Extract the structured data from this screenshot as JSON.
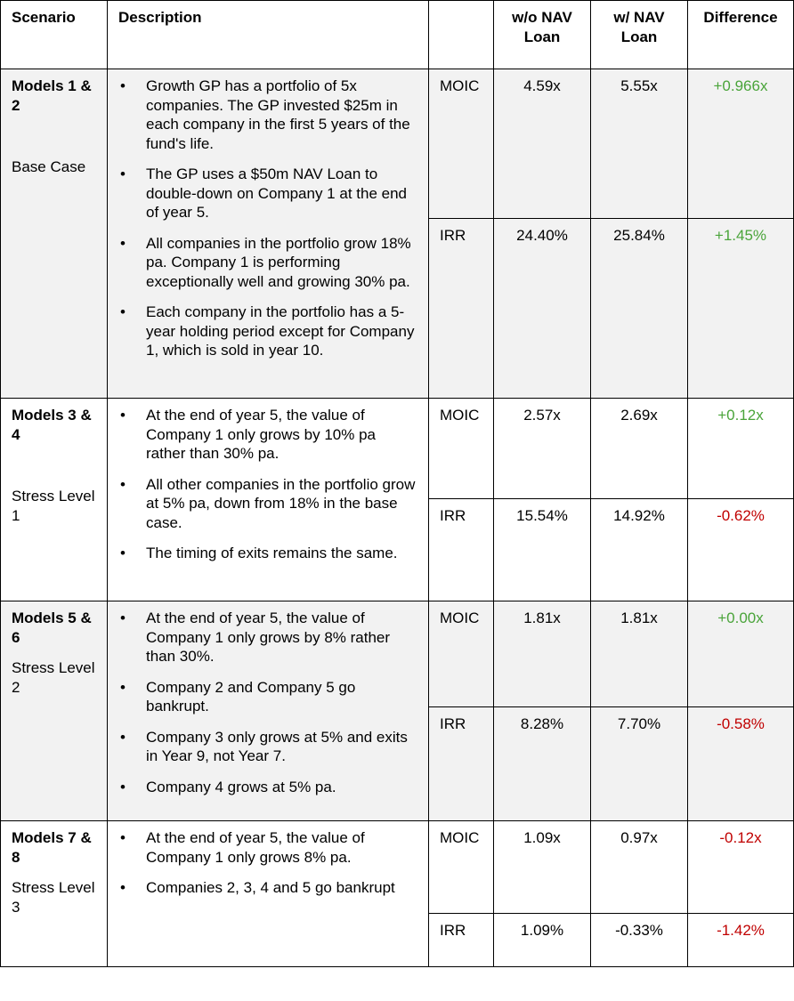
{
  "headers": {
    "scenario": "Scenario",
    "description": "Description",
    "metric": "",
    "without": "w/o NAV Loan",
    "with": "w/ NAV Loan",
    "difference": "Difference"
  },
  "colors": {
    "positive": "#4aa43a",
    "negative": "#c00000",
    "shade": "#f2f2f2"
  },
  "rows": [
    {
      "title": "Models 1 & 2",
      "subtitle": "Base Case",
      "bullets": [
        "Growth GP has a portfolio of 5x companies. The GP invested $25m in each company in the first 5 years of the fund's life.",
        "The GP uses a $50m NAV Loan to double-down on Company 1 at the end of year 5.",
        "All companies in the portfolio grow 18% pa. Company 1 is performing exceptionally well and growing 30% pa.",
        "Each company in the portfolio has a 5-year holding period except for Company 1, which is sold in year 10."
      ],
      "moic": {
        "label": "MOIC",
        "without": "4.59x",
        "with": "5.55x",
        "diff": "+0.966x"
      },
      "irr": {
        "label": "IRR",
        "without": "24.40%",
        "with": "25.84%",
        "diff": "+1.45%"
      }
    },
    {
      "title": "Models 3 & 4",
      "subtitle": "Stress Level 1",
      "bullets": [
        "At the end of year 5, the value of Company 1 only grows by 10% pa rather than 30% pa.",
        "All other companies in the portfolio grow at 5% pa, down from 18% in the base case.",
        "The timing of exits remains the same."
      ],
      "moic": {
        "label": "MOIC",
        "without": "2.57x",
        "with": "2.69x",
        "diff": "+0.12x"
      },
      "irr": {
        "label": "IRR",
        "without": "15.54%",
        "with": "14.92%",
        "diff": "-0.62%"
      }
    },
    {
      "title": "Models 5 & 6",
      "subtitle": "Stress Level 2",
      "bullets": [
        "At the end of year 5, the value of Company 1 only grows by 8% rather than 30%.",
        "Company 2 and Company 5 go bankrupt.",
        "Company 3 only grows at 5% and exits in Year 9, not Year 7.",
        "Company 4 grows at 5% pa."
      ],
      "moic": {
        "label": "MOIC",
        "without": "1.81x",
        "with": "1.81x",
        "diff": "+0.00x"
      },
      "irr": {
        "label": "IRR",
        "without": "8.28%",
        "with": "7.70%",
        "diff": "-0.58%"
      }
    },
    {
      "title": "Models 7 & 8",
      "subtitle": "Stress Level 3",
      "bullets": [
        "At the end of year 5, the value of Company 1 only grows 8% pa.",
        "Companies 2, 3, 4 and 5 go bankrupt"
      ],
      "moic": {
        "label": "MOIC",
        "without": "1.09x",
        "with": "0.97x",
        "diff": "-0.12x"
      },
      "irr": {
        "label": "IRR",
        "without": "1.09%",
        "with": "-0.33%",
        "diff": "-1.42%"
      }
    }
  ]
}
